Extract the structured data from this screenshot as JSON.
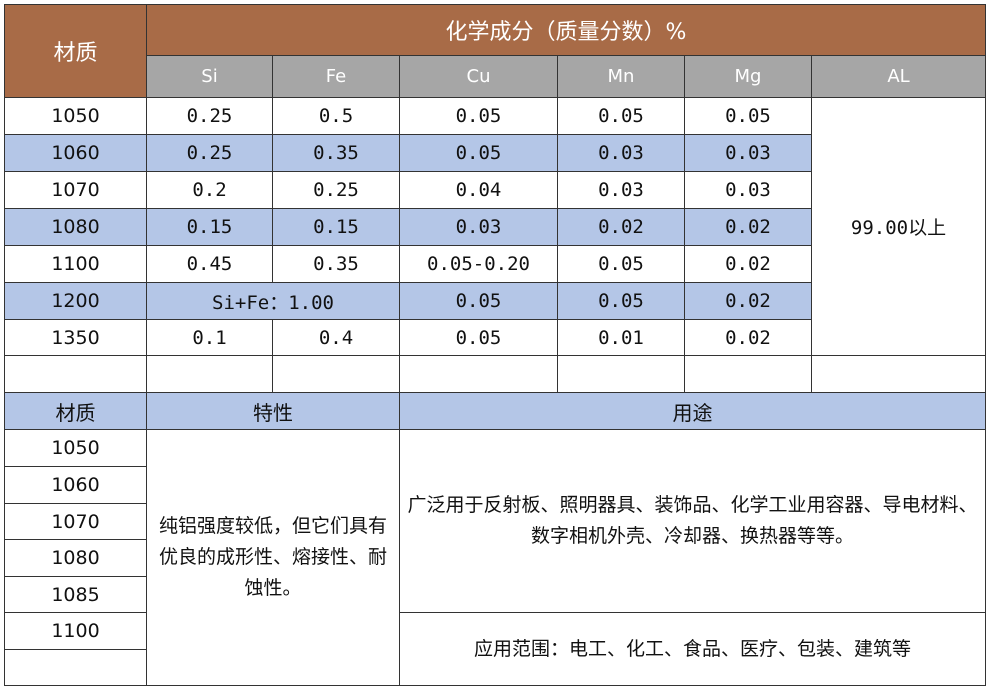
{
  "table1": {
    "material_header": "材质",
    "composition_header": "化学成分（质量分数）%",
    "elements": [
      "Si",
      "Fe",
      "Cu",
      "Mn",
      "Mg",
      "AL"
    ],
    "al_value": "99.00以上",
    "rows": [
      {
        "material": "1050",
        "si": "0.25",
        "fe": "0.5",
        "cu": "0.05",
        "mn": "0.05",
        "mg": "0.05"
      },
      {
        "material": "1060",
        "si": "0.25",
        "fe": "0.35",
        "cu": "0.05",
        "mn": "0.03",
        "mg": "0.03"
      },
      {
        "material": "1070",
        "si": "0.2",
        "fe": "0.25",
        "cu": "0.04",
        "mn": "0.03",
        "mg": "0.03"
      },
      {
        "material": "1080",
        "si": "0.15",
        "fe": "0.15",
        "cu": "0.03",
        "mn": "0.02",
        "mg": "0.02"
      },
      {
        "material": "1100",
        "si": "0.45",
        "fe": "0.35",
        "cu": "0.05-0.20",
        "mn": "0.05",
        "mg": "0.02"
      },
      {
        "material": "1200",
        "sife": "Si+Fe：1.00",
        "cu": "0.05",
        "mn": "0.05",
        "mg": "0.02"
      },
      {
        "material": "1350",
        "si": "0.1",
        "fe": "0.4",
        "cu": "0.05",
        "mn": "0.01",
        "mg": "0.02"
      }
    ]
  },
  "table2": {
    "headers": [
      "材质",
      "特性",
      "用途"
    ],
    "materials": [
      "1050",
      "1060",
      "1070",
      "1080",
      "1085",
      "1100"
    ],
    "property": "纯铝强度较低，但它们具有优良的成形性、熔接性、耐蚀性。",
    "usage": "广泛用于反射板、照明器具、装饰品、化学工业用容器、导电材料、数字相机外壳、冷却器、换热器等等。",
    "application": "应用范围：电工、化工、食品、医疗、包装、建筑等"
  },
  "colors": {
    "header_brown": "#A86B47",
    "header_gray": "#A6A6A6",
    "stripe_blue": "#B4C6E7"
  }
}
